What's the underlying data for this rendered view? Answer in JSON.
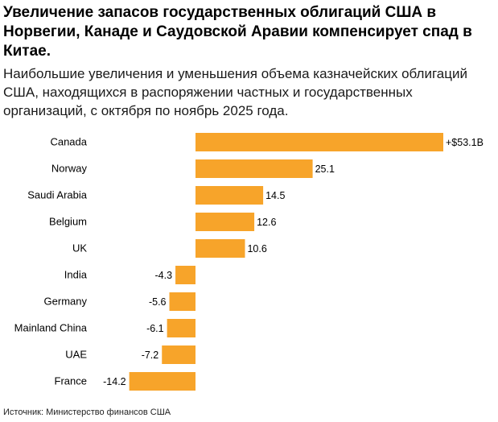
{
  "header": {
    "title": "Увеличение запасов государственных облигаций США в Норвегии, Канаде и Саудовской Аравии компенсирует спад в Китае.",
    "subtitle": "Наибольшие увеличения и уменьшения объема казначейских облигаций США, находящихся в распоряжении частных и государственных организаций, с октября по ноябрь 2025 года."
  },
  "colors": {
    "bar": "#F7A42A",
    "text": "#000000",
    "background": "#FFFFFF"
  },
  "chart_data": {
    "type": "bar",
    "orientation": "horizontal",
    "title": "Увеличение запасов государственных облигаций США в Норвегии, Канаде и Саудовской Аравии компенсирует спад в Китае.",
    "xlabel": "",
    "ylabel": "",
    "unit": "billion USD",
    "xlim": [
      -14.2,
      53.1
    ],
    "categories": [
      "Canada",
      "Norway",
      "Saudi Arabia",
      "Belgium",
      "UK",
      "India",
      "Germany",
      "Mainland China",
      "UAE",
      "France"
    ],
    "values": [
      53.1,
      25.1,
      14.5,
      12.6,
      10.6,
      -4.3,
      -5.6,
      -6.1,
      -7.2,
      -14.2
    ],
    "data_labels": [
      "+$53.1B",
      "25.1",
      "14.5",
      "12.6",
      "10.6",
      "-4.3",
      "-5.6",
      "-6.1",
      "-7.2",
      "-14.2"
    ],
    "grid": false,
    "legend": "none"
  },
  "footer": {
    "source": "Источник: Министерство финансов США"
  }
}
